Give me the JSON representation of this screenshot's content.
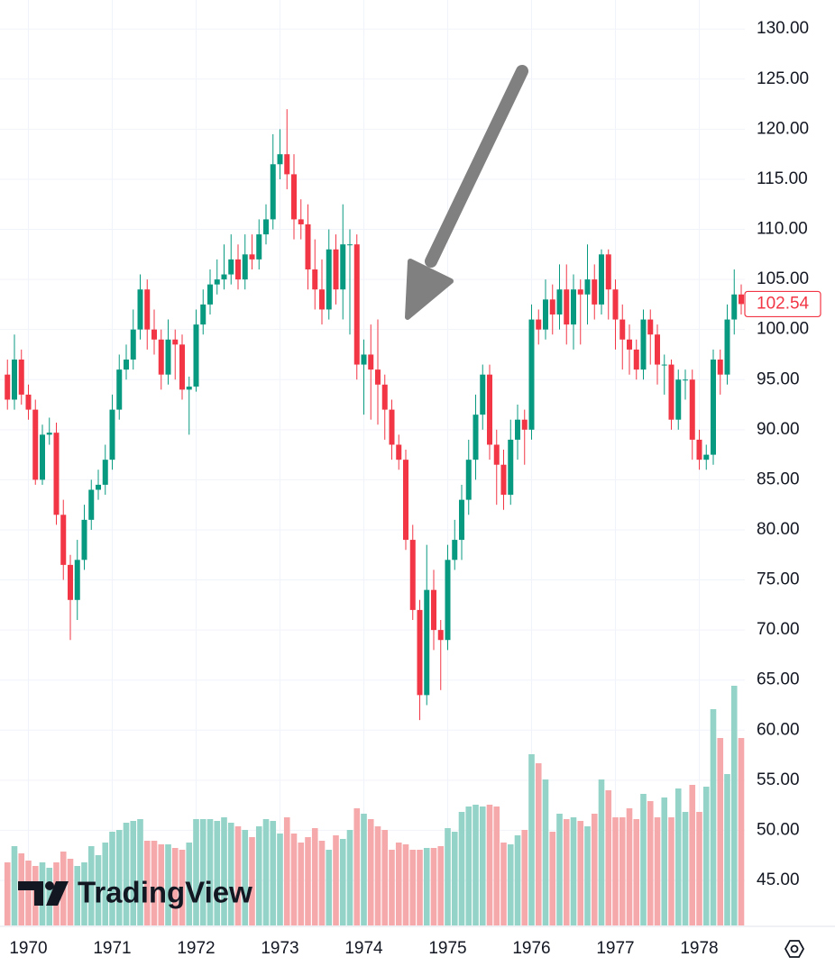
{
  "chart_data": {
    "type": "candlestick",
    "watermark": "TradingView",
    "up_color": "#089981",
    "down_color": "#f23645",
    "volume_up_color": "#93d3c8",
    "volume_down_color": "#f6a9ab",
    "grid": true,
    "ylim": [
      40.5,
      132.9
    ],
    "yticks": [
      {
        "value": 130,
        "label": "130.00"
      },
      {
        "value": 125,
        "label": "125.00"
      },
      {
        "value": 120,
        "label": "120.00"
      },
      {
        "value": 115,
        "label": "115.00"
      },
      {
        "value": 110,
        "label": "110.00"
      },
      {
        "value": 105,
        "label": "105.00"
      },
      {
        "value": 100,
        "label": "100.00"
      },
      {
        "value": 95,
        "label": "95.00"
      },
      {
        "value": 90,
        "label": "90.00"
      },
      {
        "value": 85,
        "label": "85.00"
      },
      {
        "value": 80,
        "label": "80.00"
      },
      {
        "value": 75,
        "label": "75.00"
      },
      {
        "value": 70,
        "label": "70.00"
      },
      {
        "value": 65,
        "label": "65.00"
      },
      {
        "value": 60,
        "label": "60.00"
      },
      {
        "value": 55,
        "label": "55.00"
      },
      {
        "value": 50,
        "label": "50.00"
      },
      {
        "value": 45,
        "label": "45.00"
      }
    ],
    "categories": [
      null,
      null,
      null,
      "1970",
      null,
      null,
      null,
      null,
      null,
      null,
      null,
      null,
      null,
      null,
      null,
      "1971",
      null,
      null,
      null,
      null,
      null,
      null,
      null,
      null,
      null,
      null,
      null,
      "1972",
      null,
      null,
      null,
      null,
      null,
      null,
      null,
      null,
      null,
      null,
      null,
      "1973",
      null,
      null,
      null,
      null,
      null,
      null,
      null,
      null,
      null,
      null,
      null,
      "1974",
      null,
      null,
      null,
      null,
      null,
      null,
      null,
      null,
      null,
      null,
      null,
      "1975",
      null,
      null,
      null,
      null,
      null,
      null,
      null,
      null,
      null,
      null,
      null,
      "1976",
      null,
      null,
      null,
      null,
      null,
      null,
      null,
      null,
      null,
      null,
      null,
      "1977",
      null,
      null,
      null,
      null,
      null,
      null,
      null,
      null,
      null,
      null,
      null,
      "1978",
      null,
      null,
      null,
      null,
      null,
      null
    ],
    "open": [
      95.5,
      93,
      97,
      93.5,
      92,
      85,
      89.5,
      89.7,
      81.5,
      76.5,
      73,
      77,
      81,
      84,
      84.5,
      87,
      92,
      96,
      97,
      100,
      104,
      100,
      99,
      95.5,
      99,
      98.5,
      94,
      94.3,
      100.5,
      102.5,
      104.5,
      105,
      105.5,
      107,
      105,
      107.5,
      107,
      109.5,
      111,
      116.5,
      117.5,
      115.5,
      111,
      110.5,
      106,
      104,
      102,
      108,
      104,
      108.5,
      108.5,
      96.5,
      97.5,
      96,
      94.5,
      92,
      88.5,
      87,
      79,
      72,
      63.5,
      74,
      70,
      69,
      77,
      79,
      83,
      87,
      91.5,
      95.5,
      88.5,
      86.5,
      83.5,
      89,
      91,
      90,
      101,
      100,
      103,
      101.5,
      104,
      100.5,
      104,
      103.5,
      105,
      102.5,
      107.5,
      104,
      101,
      99,
      98,
      96,
      101,
      99.5,
      96.5,
      96.5,
      91,
      95,
      95,
      89,
      87,
      87.5,
      97,
      95.5,
      101,
      103.5
    ],
    "high": [
      97,
      99.5,
      98,
      94.5,
      93,
      90.5,
      91.2,
      90.7,
      83,
      77.5,
      79,
      82.5,
      85,
      86,
      88.5,
      93.5,
      97.5,
      98.5,
      102,
      105.5,
      105,
      102,
      100,
      101,
      100,
      99.5,
      95.3,
      102,
      104,
      106,
      107,
      108.5,
      109.5,
      108.5,
      109.5,
      109.5,
      111,
      112.5,
      119.5,
      120,
      122,
      117.5,
      113,
      112.5,
      109,
      107,
      110,
      109.5,
      112.5,
      110,
      109.5,
      99,
      100.5,
      101,
      95.5,
      93,
      89.5,
      88,
      80.5,
      73,
      78.5,
      76,
      71,
      78.5,
      81,
      84.5,
      89,
      93.5,
      96.5,
      96.5,
      90,
      88,
      91,
      92.5,
      92,
      102.5,
      102,
      105,
      104.5,
      106.5,
      106.5,
      105.5,
      105,
      108.5,
      106.5,
      108,
      108,
      105,
      102.5,
      100.5,
      99,
      102,
      102,
      100.5,
      97.5,
      97,
      96,
      96,
      96,
      90,
      88.5,
      98,
      98,
      102.5,
      106,
      104.5
    ],
    "low": [
      92,
      92,
      92.5,
      91,
      84.5,
      84.5,
      88.5,
      80.5,
      75,
      69,
      71,
      76,
      80,
      83,
      83.5,
      86,
      91,
      95,
      96,
      99,
      98,
      97.5,
      94,
      94.5,
      95,
      93,
      89.5,
      93.8,
      99.5,
      101.5,
      103.5,
      104,
      104.5,
      104,
      104,
      106,
      106,
      108.5,
      110,
      115,
      114,
      109,
      109,
      104,
      102,
      100.5,
      101,
      102.5,
      101,
      99.5,
      95,
      91.5,
      91,
      90.5,
      89,
      87,
      86,
      78,
      71,
      61,
      62.5,
      68,
      64,
      68,
      76,
      77,
      81.5,
      85,
      90,
      87,
      82.5,
      82,
      82.5,
      87,
      86.5,
      89,
      98.5,
      99,
      99.5,
      100,
      98.5,
      98,
      98.5,
      100.5,
      101,
      101.5,
      101,
      98,
      96,
      95.5,
      95,
      95,
      96.5,
      94.5,
      93.5,
      90,
      90,
      93,
      87,
      86,
      86,
      86.5,
      93.5,
      94.5,
      99.5,
      101.5
    ],
    "close": [
      93,
      97,
      93.5,
      92,
      85,
      89.5,
      89.7,
      81.5,
      76.5,
      73,
      77,
      81,
      84,
      84.5,
      87,
      92,
      96,
      97,
      100,
      104,
      100,
      99,
      95.5,
      99,
      98.5,
      94,
      94.3,
      100.5,
      102.5,
      104.5,
      105,
      105.5,
      107,
      105,
      107.5,
      107,
      109.5,
      111,
      116.5,
      117.5,
      115.5,
      111,
      110.5,
      106,
      104,
      102,
      108,
      104,
      108.5,
      108.5,
      96.5,
      97.5,
      96,
      94.5,
      92,
      88.5,
      87,
      79,
      72,
      63.5,
      74,
      70,
      69,
      77,
      79,
      83,
      87,
      91.5,
      95.5,
      88.5,
      86.5,
      83.5,
      89,
      91,
      90,
      101,
      100,
      103,
      101.5,
      104,
      100.5,
      104,
      103.5,
      105,
      102.5,
      107.5,
      104,
      101,
      99,
      98,
      96,
      101,
      99.5,
      96.5,
      96.5,
      91,
      95,
      95,
      89,
      87,
      87.5,
      97,
      95.5,
      101,
      103.5,
      102.54
    ],
    "volume": [
      35,
      44,
      40,
      36,
      33,
      35,
      32,
      35,
      41,
      37,
      33,
      35,
      44,
      39,
      46,
      52,
      53,
      57,
      58,
      59,
      47,
      47,
      45,
      45,
      43,
      42,
      46,
      59,
      59,
      59,
      58,
      60,
      57,
      55,
      53,
      49,
      55,
      59,
      58,
      51,
      60,
      51,
      46,
      49,
      54,
      47,
      42,
      50,
      48,
      53,
      65,
      62,
      59,
      55,
      53,
      42,
      46,
      45,
      42,
      42,
      43,
      43,
      44,
      54,
      52,
      63,
      66,
      67,
      66,
      67,
      66,
      46,
      45,
      50,
      53,
      95,
      90,
      81,
      52,
      62,
      59,
      60,
      58,
      55,
      62,
      81,
      75,
      60,
      60,
      65,
      59,
      73,
      69,
      60,
      71,
      60,
      76,
      63,
      78,
      63,
      77,
      120,
      104,
      84,
      133,
      104
    ]
  }
}
